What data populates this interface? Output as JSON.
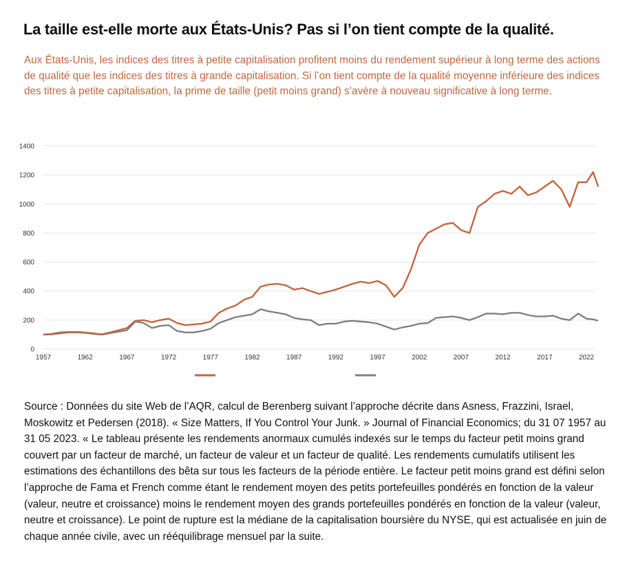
{
  "title": "La taille est-elle morte aux États-Unis? Pas si l’on tient compte de la qualité.",
  "subtitle": "Aux États-Unis, les indices des titres à petite capitalisation profitent moins du rendement supérieur à long terme des actions de qualité que les indices des titres à grande capitalisation. Si l’on tient compte de la qualité moyenne inférieure des indices des titres à petite capitalisation, la prime de taille (petit moins grand) s’avère à nouveau significative à long terme.",
  "source": "Source : Données du site Web de l’AQR, calcul de Berenberg suivant l’approche décrite dans Asness, Frazzini, Israel, Moskowitz et Pedersen (2018). « Size Matters, If You Control Your Junk. » Journal of Financial Economics; du 31 07 1957 au 31 05 2023. « Le tableau présente les rendements anormaux cumulés indexés sur le temps du facteur petit moins grand couvert par un facteur de marché, un facteur de valeur et un facteur de qualité. Les rendements cumulatifs utilisent les estimations des échantillons des bêta sur tous les facteurs de la période entière. Le facteur petit moins grand est défini selon l’approche de Fama et French comme étant le rendement moyen des petits portefeuilles pondérés en fonction de la valeur (valeur, neutre et croissance) moins le rendement moyen des grands portefeuilles pondérés en fonction de la valeur (valeur, neutre et croissance). Le point de rupture est la médiane de la capitalisation boursière du NYSE, qui est actualisée en juin de chaque année civile, avec un rééquilibrage mensuel par la suite.",
  "chart_data": {
    "type": "line",
    "title": "",
    "xlabel": "",
    "ylabel": "",
    "ylim": [
      0,
      1400
    ],
    "xlim": [
      1957,
      2023.4
    ],
    "yticks": [
      "0",
      "200",
      "400",
      "600",
      "800",
      "1000",
      "1200",
      "1400"
    ],
    "xticks": [
      "1957",
      "1962",
      "1967",
      "1972",
      "1977",
      "1982",
      "1987",
      "1992",
      "1997",
      "2002",
      "2007",
      "2012",
      "2017",
      "2022"
    ],
    "grid": true,
    "legend": "bottom",
    "x": [
      1957,
      1958,
      1959,
      1960,
      1961,
      1962,
      1963,
      1964,
      1965,
      1966,
      1967,
      1968,
      1969,
      1970,
      1971,
      1972,
      1973,
      1974,
      1975,
      1976,
      1977,
      1978,
      1979,
      1980,
      1981,
      1982,
      1983,
      1984,
      1985,
      1986,
      1987,
      1988,
      1989,
      1990,
      1991,
      1992,
      1993,
      1994,
      1995,
      1996,
      1997,
      1998,
      1999,
      2000,
      2001,
      2002,
      2003,
      2004,
      2005,
      2006,
      2007,
      2008,
      2009,
      2010,
      2011,
      2012,
      2013,
      2014,
      2015,
      2016,
      2017,
      2018,
      2019,
      2020,
      2021,
      2022,
      2022.8,
      2023.4
    ],
    "series": [
      {
        "name": "",
        "color": "#c0663f",
        "values": [
          100,
          105,
          115,
          118,
          118,
          115,
          108,
          102,
          115,
          130,
          145,
          195,
          200,
          185,
          200,
          210,
          180,
          165,
          170,
          175,
          190,
          250,
          280,
          300,
          340,
          360,
          430,
          445,
          450,
          440,
          410,
          420,
          400,
          380,
          395,
          410,
          430,
          450,
          465,
          455,
          470,
          440,
          360,
          420,
          550,
          720,
          800,
          830,
          860,
          870,
          820,
          800,
          980,
          1020,
          1070,
          1090,
          1070,
          1120,
          1060,
          1080,
          1120,
          1160,
          1100,
          980,
          1150,
          1150,
          1220,
          1120
        ]
      },
      {
        "name": "",
        "color": "#808080",
        "values": [
          100,
          102,
          108,
          115,
          115,
          112,
          105,
          100,
          110,
          120,
          130,
          190,
          180,
          145,
          160,
          165,
          125,
          115,
          115,
          125,
          140,
          180,
          200,
          220,
          230,
          240,
          275,
          260,
          250,
          240,
          215,
          205,
          200,
          165,
          175,
          175,
          190,
          195,
          190,
          185,
          175,
          155,
          135,
          150,
          160,
          175,
          180,
          215,
          220,
          225,
          215,
          200,
          220,
          245,
          245,
          240,
          250,
          250,
          235,
          225,
          225,
          230,
          210,
          200,
          245,
          210,
          205,
          195
        ]
      }
    ]
  }
}
